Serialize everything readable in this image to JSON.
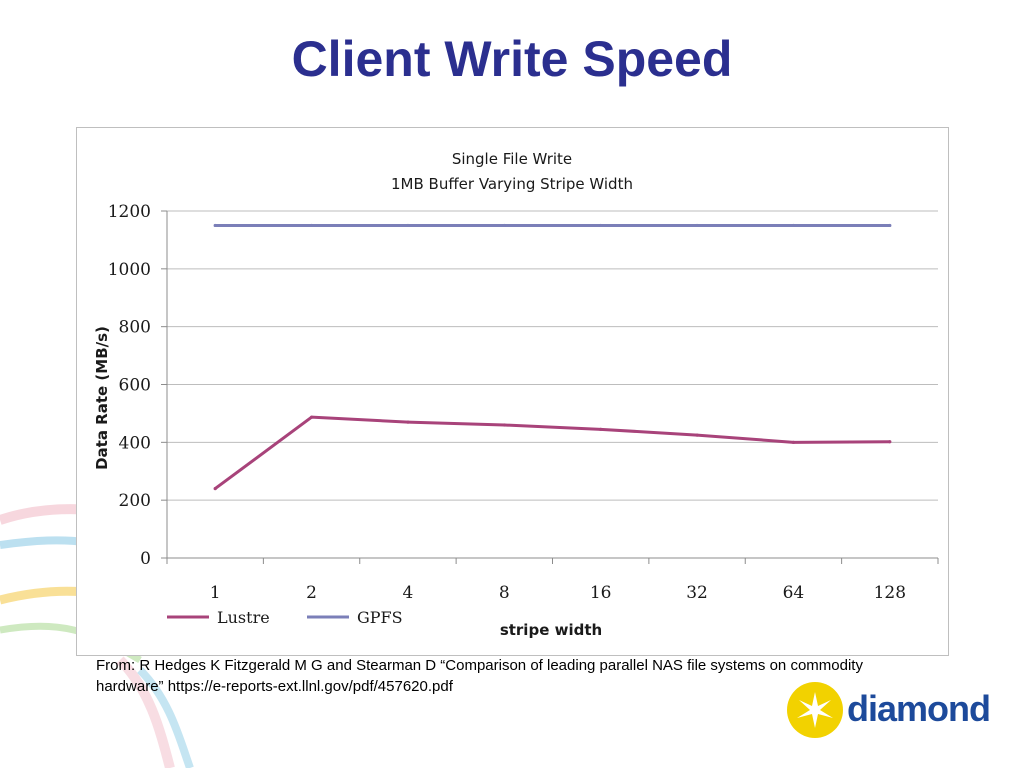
{
  "slide": {
    "title": "Client Write Speed"
  },
  "chart_data": {
    "type": "line",
    "title": "Single File Write",
    "subtitle": "1MB  Buffer Varying Stripe Width",
    "xlabel": "stripe width",
    "ylabel": "Data Rate (MB/s)",
    "categories": [
      "1",
      "2",
      "4",
      "8",
      "16",
      "32",
      "64",
      "128"
    ],
    "ylim": [
      0,
      1200
    ],
    "yticks": [
      0,
      200,
      400,
      600,
      800,
      1000,
      1200
    ],
    "grid": true,
    "legend": "bottom-left",
    "series": [
      {
        "name": "Lustre",
        "color": "#a8437a",
        "values": [
          240,
          487,
          470,
          460,
          445,
          425,
          400,
          402
        ]
      },
      {
        "name": "GPFS",
        "color": "#7b7fb8",
        "values": [
          1150,
          1150,
          1150,
          1150,
          1150,
          1150,
          1150,
          1150
        ]
      }
    ]
  },
  "source_note": "From: R Hedges K Fitzgerald M G and Stearman D “Comparison of leading parallel NAS file systems on commodity hardware” https://e-reports-ext.llnl.gov/pdf/457620.pdf",
  "logo": {
    "text": "diamond",
    "colors": {
      "sun": "#f2d200",
      "text": "#1d4a9b"
    }
  }
}
